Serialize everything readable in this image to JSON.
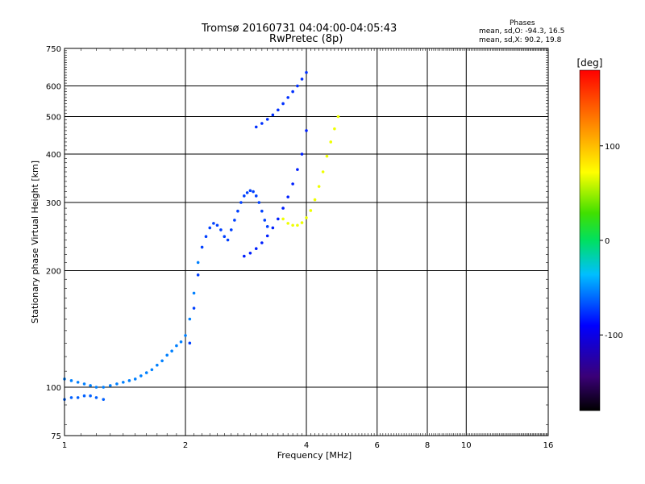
{
  "chart_data": {
    "type": "scatter",
    "title": "Tromsø 20160731 04:04:00-04:05:43",
    "subtitle": "RwPretec (8p)",
    "xlabel": "Frequency [MHz]",
    "ylabel": "Stationary phase Virtual Height [km]",
    "x_scale": "log",
    "y_scale": "log",
    "xlim": [
      1,
      16
    ],
    "ylim": [
      75,
      750
    ],
    "x_ticks": [
      1,
      2,
      4,
      6,
      8,
      10,
      16
    ],
    "y_ticks": [
      75,
      100,
      200,
      300,
      400,
      500,
      600,
      750
    ],
    "grid_x": [
      2,
      4,
      6,
      8,
      10
    ],
    "grid_y": [
      100,
      200,
      300,
      400,
      500,
      600
    ],
    "stats": {
      "title": "Phases",
      "o_mode": "mean, sd,O: -94.3, 16.5",
      "x_mode": "mean, sd,X:  90.2, 19.8"
    },
    "colorbar": {
      "label": "[deg]",
      "range": [
        -180,
        180
      ],
      "ticks": [
        100,
        0,
        -100
      ],
      "colormap": "rainbow"
    },
    "series": [
      {
        "mode": "o",
        "phase_deg": -100,
        "x": [
          1.0,
          1.04,
          1.08,
          1.12,
          1.16,
          1.2,
          1.25,
          1.3,
          1.35,
          1.4,
          1.45,
          1.5,
          1.55,
          1.6,
          1.65,
          1.7,
          1.75,
          1.8,
          1.85,
          1.9,
          1.95,
          2.0,
          2.05,
          2.1,
          2.15
        ],
        "y": [
          105,
          104,
          103,
          102,
          101,
          100,
          100,
          101,
          102,
          103,
          104,
          105,
          107,
          109,
          111,
          114,
          117,
          121,
          124,
          128,
          131,
          136,
          150,
          175,
          210
        ]
      },
      {
        "mode": "o",
        "phase_deg": -110,
        "x": [
          1.0,
          1.04,
          1.08,
          1.12,
          1.16,
          1.2,
          1.25
        ],
        "y": [
          93,
          94,
          94,
          95,
          95,
          94,
          93
        ]
      },
      {
        "mode": "o",
        "phase_deg": -120,
        "x": [
          2.05,
          2.1,
          2.15,
          2.2,
          2.25,
          2.3,
          2.35,
          2.4,
          2.45,
          2.5,
          2.55,
          2.6,
          2.65,
          2.7,
          2.75,
          2.8,
          2.85,
          2.9,
          2.95,
          3.0,
          3.05,
          3.1,
          3.15,
          3.2
        ],
        "y": [
          130,
          160,
          195,
          230,
          245,
          258,
          265,
          262,
          255,
          245,
          240,
          255,
          270,
          285,
          300,
          312,
          318,
          322,
          320,
          312,
          300,
          285,
          270,
          260
        ]
      },
      {
        "mode": "o",
        "phase_deg": -130,
        "x": [
          2.8,
          2.9,
          3.0,
          3.1,
          3.2,
          3.3,
          3.4,
          3.5,
          3.6,
          3.7,
          3.8,
          3.9,
          4.0
        ],
        "y": [
          218,
          222,
          228,
          236,
          246,
          258,
          272,
          290,
          310,
          335,
          365,
          400,
          460
        ]
      },
      {
        "mode": "o",
        "phase_deg": -125,
        "x": [
          3.0,
          3.1,
          3.2,
          3.3,
          3.4,
          3.5,
          3.6,
          3.7,
          3.8,
          3.9,
          4.0
        ],
        "y": [
          470,
          480,
          492,
          505,
          520,
          540,
          560,
          580,
          600,
          625,
          650
        ]
      },
      {
        "mode": "x",
        "phase_deg": 95,
        "x": [
          3.5,
          3.6,
          3.7,
          3.8,
          3.9,
          4.0,
          4.1,
          4.2,
          4.3,
          4.4,
          4.5,
          4.6,
          4.7,
          4.8
        ],
        "y": [
          272,
          265,
          262,
          262,
          266,
          274,
          286,
          305,
          330,
          360,
          395,
          430,
          465,
          500
        ]
      }
    ]
  }
}
